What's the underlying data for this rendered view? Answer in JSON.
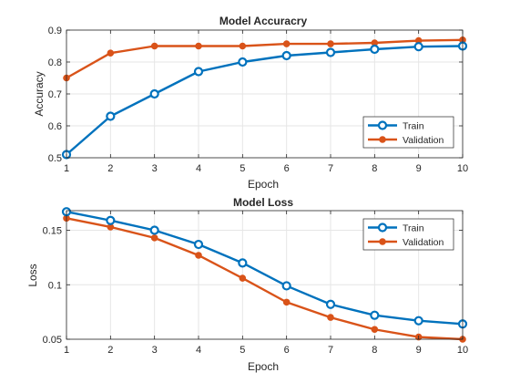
{
  "colors": {
    "train": "#0072BD",
    "validation": "#D95319",
    "grid": "#e6e6e6",
    "axis": "#262626"
  },
  "chart_data": [
    {
      "type": "line",
      "title": "Model Accuracry",
      "xlabel": "Epoch",
      "ylabel": "Accuracy",
      "x": [
        1,
        2,
        3,
        4,
        5,
        6,
        7,
        8,
        9,
        10
      ],
      "xlim": [
        1,
        10
      ],
      "ylim": [
        0.5,
        0.9
      ],
      "xticks": [
        "1",
        "2",
        "3",
        "4",
        "5",
        "6",
        "7",
        "8",
        "9",
        "10"
      ],
      "yticks": [
        "0.5",
        "0.6",
        "0.7",
        "0.8",
        "0.9"
      ],
      "ytick_values": [
        0.5,
        0.6,
        0.7,
        0.8,
        0.9
      ],
      "grid": true,
      "legend_position": "bottom-right",
      "series": [
        {
          "name": "Train",
          "marker": "circle",
          "values": [
            0.51,
            0.63,
            0.7,
            0.77,
            0.8,
            0.82,
            0.83,
            0.84,
            0.848,
            0.85
          ]
        },
        {
          "name": "Validation",
          "marker": "dot",
          "values": [
            0.75,
            0.828,
            0.85,
            0.85,
            0.85,
            0.857,
            0.857,
            0.86,
            0.867,
            0.869
          ]
        }
      ]
    },
    {
      "type": "line",
      "title": "Model Loss",
      "xlabel": "Epoch",
      "ylabel": "Loss",
      "x": [
        1,
        2,
        3,
        4,
        5,
        6,
        7,
        8,
        9,
        10
      ],
      "xlim": [
        1,
        10
      ],
      "ylim": [
        0.05,
        0.168
      ],
      "xticks": [
        "1",
        "2",
        "3",
        "4",
        "5",
        "6",
        "7",
        "8",
        "9",
        "10"
      ],
      "yticks": [
        "0.05",
        "0.1",
        "0.15"
      ],
      "ytick_values": [
        0.05,
        0.1,
        0.15
      ],
      "grid": true,
      "legend_position": "top-right",
      "series": [
        {
          "name": "Train",
          "marker": "circle",
          "values": [
            0.167,
            0.159,
            0.15,
            0.137,
            0.12,
            0.099,
            0.082,
            0.072,
            0.067,
            0.064
          ]
        },
        {
          "name": "Validation",
          "marker": "dot",
          "values": [
            0.161,
            0.153,
            0.143,
            0.127,
            0.106,
            0.084,
            0.07,
            0.059,
            0.052,
            0.05
          ]
        }
      ]
    }
  ]
}
